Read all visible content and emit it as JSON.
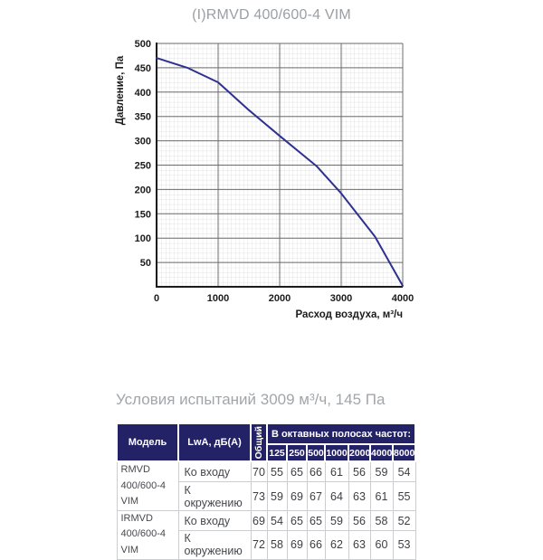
{
  "page": {
    "title": "(I)RMVD 400/600-4 VIM",
    "conditions": "Условия испытаний 3009 м³/ч, 145 Па"
  },
  "colors": {
    "curve": "#2e3190",
    "table_header_bg": "#242267",
    "major_grid": "#6f6f6f",
    "minor_grid": "#dadada",
    "axis": "#1b1b1b",
    "muted_text": "#9aa0a5"
  },
  "chart_data": [
    {
      "type": "line",
      "title": "(I)RMVD 400/600-4 VIM",
      "xlabel": "Расход воздуха, м³/ч",
      "ylabel": "Давление, Па",
      "xlim": [
        0,
        4000
      ],
      "ylim": [
        0,
        500
      ],
      "x_ticks": [
        0,
        1000,
        2000,
        3000,
        4000
      ],
      "y_ticks": [
        50,
        100,
        150,
        200,
        250,
        300,
        350,
        400,
        450,
        500
      ],
      "grid": "major+minor",
      "legend": "none",
      "series": [
        {
          "name": "fan pressure curve",
          "points": [
            [
              0,
              470
            ],
            [
              500,
              450
            ],
            [
              1000,
              420
            ],
            [
              1500,
              363
            ],
            [
              2000,
              310
            ],
            [
              2600,
              248
            ],
            [
              3000,
              192
            ],
            [
              3550,
              103
            ],
            [
              4000,
              2
            ]
          ]
        }
      ]
    },
    {
      "type": "table",
      "title": "LwA, дБ(A)",
      "columns": [
        "Модель",
        "LwA, дБ(A)",
        "Общий",
        "125",
        "250",
        "500",
        "1000",
        "2000",
        "4000",
        "8000"
      ],
      "rows": [
        [
          "RMVD 400/600-4 VIM",
          "Ко входу",
          70,
          55,
          65,
          66,
          61,
          56,
          59,
          54
        ],
        [
          "RMVD 400/600-4 VIM",
          "К окружению",
          73,
          59,
          69,
          67,
          64,
          63,
          61,
          55
        ],
        [
          "IRMVD 400/600-4 VIM",
          "Ко входу",
          69,
          54,
          65,
          65,
          59,
          56,
          58,
          52
        ],
        [
          "IRMVD 400/600-4 VIM",
          "К окружению",
          72,
          58,
          69,
          66,
          62,
          63,
          60,
          53
        ]
      ]
    }
  ],
  "table": {
    "header": {
      "model": "Модель",
      "lwa": "LwA, дБ(A)",
      "total": "Общий",
      "octave": "В октавных полосах частот:",
      "bands": [
        "125",
        "250",
        "500",
        "1000",
        "2000",
        "4000",
        "8000"
      ]
    },
    "groups": [
      {
        "model": "RMVD\n400/600-4 VIM",
        "rows": [
          {
            "label": "Ко входу",
            "total": "70",
            "bands": [
              "55",
              "65",
              "66",
              "61",
              "56",
              "59",
              "54"
            ]
          },
          {
            "label": "К окружению",
            "total": "73",
            "bands": [
              "59",
              "69",
              "67",
              "64",
              "63",
              "61",
              "55"
            ]
          }
        ]
      },
      {
        "model": "IRMVD\n400/600-4 VIM",
        "rows": [
          {
            "label": "Ко входу",
            "total": "69",
            "bands": [
              "54",
              "65",
              "65",
              "59",
              "56",
              "58",
              "52"
            ]
          },
          {
            "label": "К окружению",
            "total": "72",
            "bands": [
              "58",
              "69",
              "66",
              "62",
              "63",
              "60",
              "53"
            ]
          }
        ]
      }
    ]
  }
}
